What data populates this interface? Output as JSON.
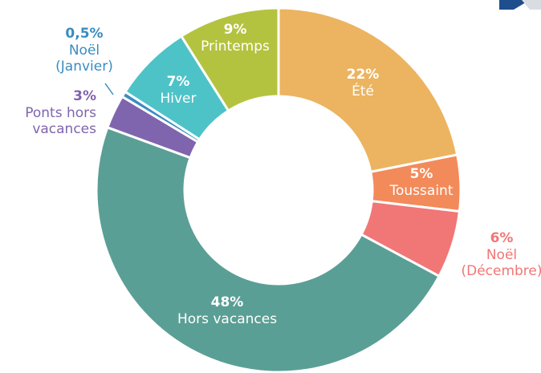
{
  "chart_data": {
    "type": "donut",
    "categories": [
      [
        "Été"
      ],
      [
        "Toussaint"
      ],
      [
        "Noël",
        "(Décembre)"
      ],
      [
        "Hors vacances"
      ],
      [
        "Ponts hors",
        "vacances"
      ],
      [
        "Noël",
        "(Janvier)"
      ],
      [
        "Hiver"
      ],
      [
        "Printemps"
      ]
    ],
    "values": [
      22,
      5,
      6,
      48,
      3,
      0.5,
      7,
      9
    ],
    "value_labels": [
      "22%",
      "5%",
      "6%",
      "48%",
      "3%",
      "0,5%",
      "7%",
      "9%"
    ],
    "colors": [
      "#ecb460",
      "#f38a5a",
      "#f17676",
      "#5a9f95",
      "#7f65ad",
      "#3a8cc1",
      "#4dc3c7",
      "#b4c33f"
    ]
  }
}
